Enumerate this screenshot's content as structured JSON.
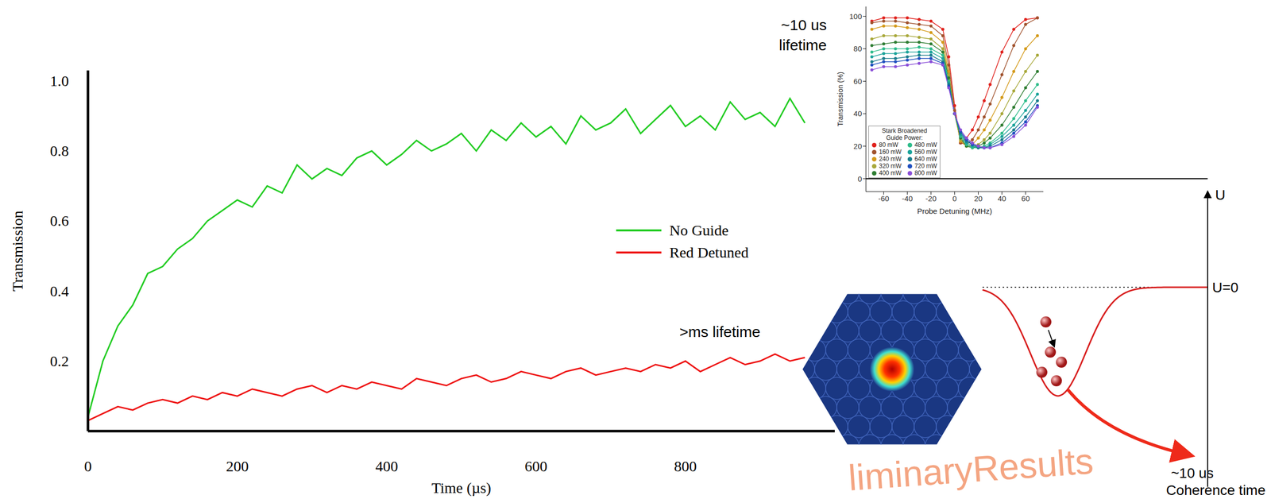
{
  "chart_data": [
    {
      "type": "line",
      "xlabel": "Time (µs)",
      "ylabel": "Transmission",
      "x": [
        0,
        20,
        40,
        60,
        80,
        100,
        120,
        140,
        160,
        180,
        200,
        220,
        240,
        260,
        280,
        300,
        320,
        340,
        360,
        380,
        400,
        420,
        440,
        460,
        480,
        500,
        520,
        540,
        560,
        580,
        600,
        620,
        640,
        660,
        680,
        700,
        720,
        740,
        760,
        780,
        800,
        820,
        840,
        860,
        880,
        900,
        920,
        940,
        960
      ],
      "series": [
        {
          "name": "No Guide",
          "color": "#22cc22",
          "values": [
            0.04,
            0.2,
            0.3,
            0.36,
            0.45,
            0.47,
            0.52,
            0.55,
            0.6,
            0.63,
            0.66,
            0.64,
            0.7,
            0.68,
            0.76,
            0.72,
            0.75,
            0.73,
            0.78,
            0.8,
            0.76,
            0.79,
            0.83,
            0.8,
            0.82,
            0.85,
            0.8,
            0.86,
            0.83,
            0.88,
            0.84,
            0.87,
            0.82,
            0.9,
            0.86,
            0.88,
            0.92,
            0.85,
            0.89,
            0.93,
            0.87,
            0.9,
            0.86,
            0.94,
            0.89,
            0.91,
            0.87,
            0.95,
            0.88
          ]
        },
        {
          "name": "Red Detuned",
          "color": "#ee1111",
          "values": [
            0.03,
            0.05,
            0.07,
            0.06,
            0.08,
            0.09,
            0.08,
            0.1,
            0.09,
            0.11,
            0.1,
            0.12,
            0.11,
            0.1,
            0.12,
            0.13,
            0.11,
            0.13,
            0.12,
            0.14,
            0.13,
            0.12,
            0.15,
            0.14,
            0.13,
            0.15,
            0.16,
            0.14,
            0.15,
            0.17,
            0.16,
            0.15,
            0.17,
            0.18,
            0.16,
            0.17,
            0.18,
            0.17,
            0.19,
            0.18,
            0.2,
            0.17,
            0.19,
            0.21,
            0.19,
            0.2,
            0.22,
            0.2,
            0.21
          ]
        }
      ],
      "xlim": [
        0,
        1000
      ],
      "ylim": [
        0,
        1.03
      ],
      "xticks": [
        0,
        200,
        400,
        600,
        800
      ],
      "yticks": [
        0.2,
        0.4,
        0.6,
        0.8,
        {
          "value": 1,
          "label": "1.0"
        }
      ],
      "legend": "right",
      "annotations": [
        [
          "~10 us",
          "lifetime"
        ],
        [
          ">ms lifetime"
        ]
      ]
    },
    {
      "type": "line",
      "marker": "circle",
      "xlabel": "Probe Detuning (MHz)",
      "ylabel": "Transmission (%)",
      "legend_title": "Stark Broadened Guide Power:",
      "legend": "lower left",
      "x": [
        -70,
        -60,
        -50,
        -40,
        -30,
        -20,
        -10,
        -5,
        0,
        5,
        10,
        15,
        20,
        25,
        30,
        40,
        50,
        60,
        70
      ],
      "series": [
        {
          "name": "80 mW",
          "color": "#e0201b",
          "values": [
            97,
            99,
            99,
            99,
            98,
            97,
            92,
            75,
            45,
            22,
            25,
            30,
            38,
            48,
            58,
            78,
            92,
            98,
            99
          ]
        },
        {
          "name": "160 mW",
          "color": "#a0522d",
          "values": [
            96,
            97,
            97,
            96,
            95,
            94,
            88,
            70,
            42,
            22,
            21,
            24,
            30,
            38,
            46,
            64,
            82,
            95,
            99
          ]
        },
        {
          "name": "240 mW",
          "color": "#d49a1a",
          "values": [
            92,
            94,
            94,
            93,
            92,
            90,
            84,
            66,
            40,
            23,
            20,
            21,
            25,
            30,
            36,
            50,
            66,
            80,
            88
          ]
        },
        {
          "name": "320 mW",
          "color": "#a8a83a",
          "values": [
            86,
            88,
            88,
            88,
            87,
            86,
            80,
            64,
            40,
            24,
            20,
            20,
            21,
            24,
            28,
            40,
            54,
            66,
            76
          ]
        },
        {
          "name": "400 mW",
          "color": "#2e7d32",
          "values": [
            82,
            83,
            84,
            84,
            84,
            83,
            78,
            62,
            40,
            25,
            20,
            19,
            20,
            22,
            25,
            33,
            44,
            56,
            66
          ]
        },
        {
          "name": "480 mW",
          "color": "#2ebc8a",
          "values": [
            78,
            80,
            80,
            80,
            81,
            80,
            76,
            60,
            40,
            26,
            21,
            19,
            19,
            20,
            22,
            28,
            37,
            48,
            58
          ]
        },
        {
          "name": "560 mW",
          "color": "#1aa39a",
          "values": [
            75,
            77,
            77,
            78,
            78,
            78,
            74,
            59,
            40,
            27,
            22,
            20,
            19,
            19,
            21,
            26,
            33,
            42,
            52
          ]
        },
        {
          "name": "640 mW",
          "color": "#1a7d8c",
          "values": [
            72,
            74,
            74,
            75,
            76,
            76,
            72,
            58,
            40,
            28,
            23,
            21,
            19,
            19,
            20,
            24,
            30,
            38,
            48
          ]
        },
        {
          "name": "720 mW",
          "color": "#1f4fbf",
          "values": [
            70,
            72,
            72,
            73,
            74,
            74,
            71,
            57,
            40,
            29,
            24,
            21,
            20,
            19,
            19,
            22,
            28,
            35,
            45
          ]
        },
        {
          "name": "800 mW",
          "color": "#8a4fd8",
          "values": [
            67,
            69,
            69,
            70,
            71,
            72,
            70,
            56,
            40,
            30,
            25,
            22,
            20,
            19,
            19,
            21,
            26,
            33,
            44
          ]
        }
      ],
      "xlim": [
        -75,
        75
      ],
      "ylim": [
        -8,
        106
      ],
      "xticks": [
        -60,
        -40,
        -20,
        0,
        20,
        40,
        60
      ],
      "yticks": [
        0,
        20,
        40,
        60,
        80,
        100
      ]
    }
  ],
  "diagram": {
    "u_axis_label": "U",
    "zero_label": "U=0",
    "coherence_label": [
      "~10 us",
      "Coherence time"
    ],
    "watermark": "liminaryResults"
  }
}
